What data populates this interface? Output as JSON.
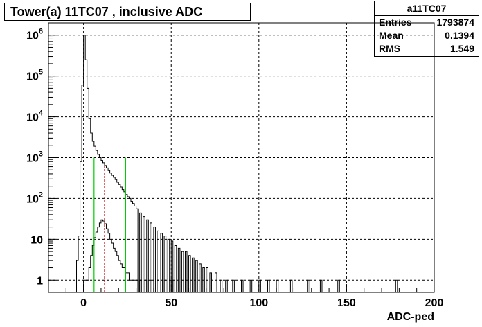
{
  "title": "Tower(a) 11TC07 , inclusive ADC",
  "stats": {
    "name": "a11TC07",
    "rows": [
      {
        "label": "Entries",
        "value": "1793874"
      },
      {
        "label": "Mean",
        "value": "0.1394"
      },
      {
        "label": "RMS",
        "value": "1.549"
      }
    ]
  },
  "chart_data": {
    "type": "line",
    "title": "Tower(a) 11TC07 , inclusive ADC",
    "xlabel": "ADC-ped",
    "ylabel": "",
    "xlim": [
      -20,
      200
    ],
    "ylim": [
      0.5,
      2000000
    ],
    "yscale": "log",
    "grid": true,
    "x_ticks": [
      0,
      50,
      100,
      150,
      200
    ],
    "x_tick_labels": [
      "0",
      "50",
      "100",
      "150",
      "200"
    ],
    "y_ticks": [
      1,
      10,
      100,
      1000,
      10000,
      100000,
      1000000
    ],
    "y_tick_labels": [
      "1",
      "10",
      "10^2",
      "10^3",
      "10^4",
      "10^5",
      "10^6"
    ],
    "series": [
      {
        "bin_width": 1,
        "x": [
          -4,
          -3,
          -2,
          -1,
          0,
          1,
          2,
          3,
          4,
          5,
          6,
          7,
          8,
          9,
          10,
          11,
          12,
          13,
          14,
          15,
          16,
          17,
          18,
          19,
          20,
          21,
          22,
          23,
          24,
          25,
          26,
          27,
          28,
          29,
          30,
          32,
          34,
          36,
          38,
          40,
          42,
          44,
          46,
          48,
          50,
          52,
          54,
          56,
          58,
          60,
          62,
          64,
          66,
          68,
          70,
          72,
          75,
          78,
          81,
          85,
          90,
          95,
          100,
          105,
          110,
          118,
          128,
          135,
          145,
          178
        ],
        "y": [
          3,
          12,
          800,
          60000,
          1000000,
          250000,
          50000,
          9000,
          4000,
          2500,
          1900,
          1500,
          1200,
          1000,
          850,
          750,
          640,
          560,
          480,
          420,
          370,
          330,
          290,
          250,
          220,
          190,
          165,
          145,
          125,
          110,
          100,
          85,
          75,
          65,
          56,
          44,
          36,
          30,
          25,
          20,
          16,
          14,
          12,
          10,
          9,
          7,
          6,
          5,
          5,
          4,
          3.5,
          3,
          2.5,
          2,
          2,
          1.5,
          1.5,
          1,
          1,
          1,
          1,
          1,
          1,
          1,
          1,
          1,
          1,
          1,
          1,
          1
        ]
      },
      {
        "bin_width": 1,
        "x": [
          0,
          1,
          2,
          3,
          4,
          5,
          6,
          7,
          8,
          9,
          10,
          11,
          12,
          13,
          14,
          15,
          16,
          17,
          18,
          19,
          20,
          21,
          22,
          23,
          24,
          25,
          26,
          27,
          28,
          29,
          30,
          32,
          35,
          38,
          42,
          46,
          50
        ],
        "y": [
          1,
          1,
          1,
          2,
          4,
          7,
          11,
          15,
          20,
          25,
          30,
          28,
          24,
          18,
          14,
          10,
          8,
          6,
          5,
          4,
          3,
          2.5,
          2,
          2,
          1.5,
          1.5,
          1,
          1,
          1,
          1,
          1,
          1,
          1,
          1,
          1,
          1,
          1
        ]
      }
    ],
    "markers": [
      {
        "x": 6,
        "y_top": 1000,
        "color": "#00cc00",
        "style": "solid"
      },
      {
        "x": 12,
        "y_top": 700,
        "color": "#cc0000",
        "style": "dashed"
      },
      {
        "x": 24,
        "y_top": 1000,
        "color": "#00cc00",
        "style": "solid"
      }
    ]
  }
}
